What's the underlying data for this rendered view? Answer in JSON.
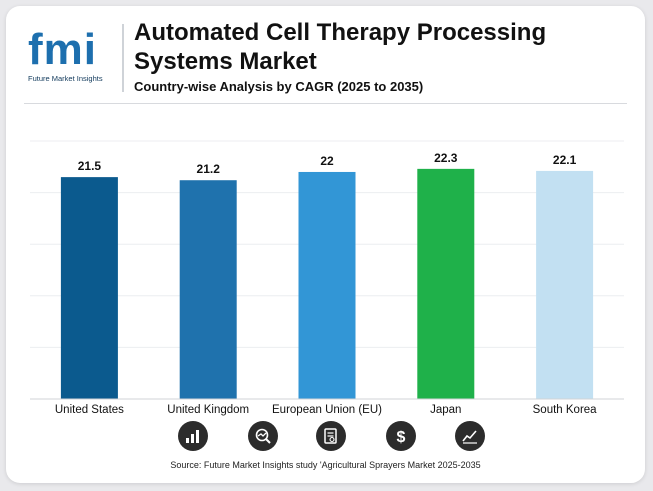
{
  "logo": {
    "text": "fmi",
    "subtitle": "Future Market Insights"
  },
  "header": {
    "title": "Automated Cell Therapy Processing Systems Market",
    "subtitle": "Country-wise Analysis by CAGR (2025 to 2035)"
  },
  "chart_data": {
    "type": "bar",
    "categories": [
      "United States",
      "United Kingdom",
      "European Union (EU)",
      "Japan",
      "South Korea"
    ],
    "values": [
      21.5,
      21.2,
      22,
      22.3,
      22.1
    ],
    "data_labels": [
      "21.5",
      "21.2",
      "22",
      "22.3",
      "22.1"
    ],
    "colors": [
      "#0b5a8e",
      "#1f72ad",
      "#3296d6",
      "#1fb14a",
      "#c2e0f2"
    ],
    "ylim": [
      0,
      25
    ],
    "grid": true,
    "legend": "none"
  },
  "icons": [
    "bar-chart-icon",
    "trend-magnifier-icon",
    "report-icon",
    "dollar-icon",
    "growth-chart-icon"
  ],
  "footer": {
    "source": "Source: Future Market Insights study 'Agricultural Sprayers Market 2025-2035"
  }
}
